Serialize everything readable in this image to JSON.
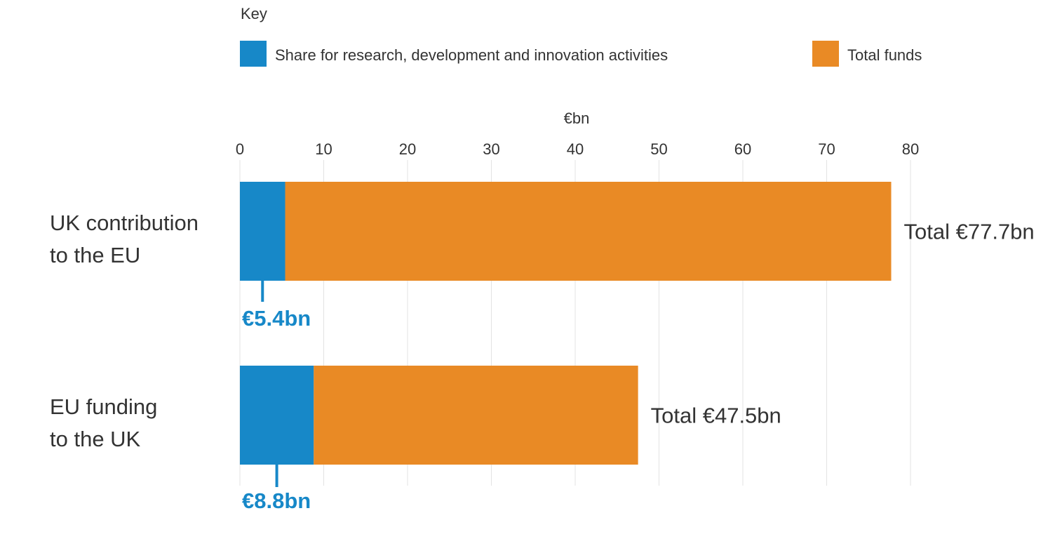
{
  "colors": {
    "rd": "#1788c8",
    "total": "#e98a25",
    "grid": "#e3e3e3",
    "text": "#333333"
  },
  "legend": {
    "title": "Key",
    "items": [
      {
        "label": "Share for research, development and innovation activities",
        "color": "#1788c8"
      },
      {
        "label": "Total funds",
        "color": "#e98a25"
      }
    ]
  },
  "chart_data": {
    "type": "bar",
    "orientation": "horizontal",
    "stacked": true,
    "axis_title": "€bn",
    "xlim": [
      0,
      80
    ],
    "ticks": [
      0,
      10,
      20,
      30,
      40,
      50,
      60,
      70,
      80
    ],
    "grid": true,
    "legend_position": "top",
    "categories": [
      {
        "lines": [
          "UK contribution",
          "to the EU"
        ],
        "rd": 5.4,
        "total": 77.7,
        "rd_label": "€5.4bn",
        "total_label": "Total €77.7bn"
      },
      {
        "lines": [
          "EU funding",
          "to the UK"
        ],
        "rd": 8.8,
        "total": 47.5,
        "rd_label": "€8.8bn",
        "total_label": "Total €47.5bn"
      }
    ],
    "series": [
      {
        "name": "Share for research, development and innovation activities",
        "values": [
          5.4,
          8.8
        ]
      },
      {
        "name": "Total funds",
        "values": [
          77.7,
          47.5
        ]
      }
    ]
  }
}
